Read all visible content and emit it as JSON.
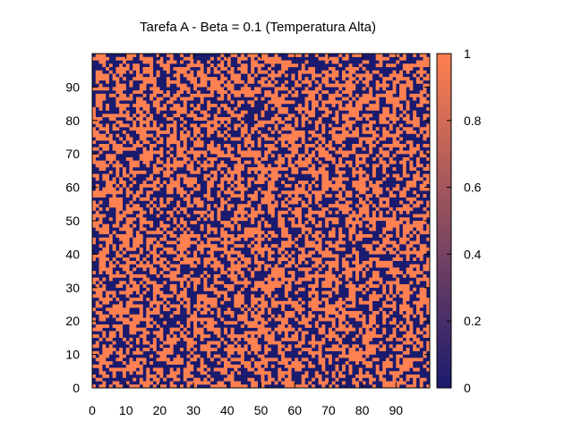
{
  "chart_data": {
    "type": "heatmap",
    "title": "Tarefa A - Beta = 0.1 (Temperatura Alta)",
    "xlabel": "",
    "ylabel": "",
    "grid_size": [
      100,
      100
    ],
    "xlim": [
      0,
      99
    ],
    "ylim": [
      0,
      99
    ],
    "x_ticks": [
      0,
      10,
      20,
      30,
      40,
      50,
      60,
      70,
      80,
      90
    ],
    "y_ticks": [
      0,
      10,
      20,
      30,
      40,
      50,
      60,
      70,
      80,
      90
    ],
    "colorbar": {
      "range": [
        0,
        1
      ],
      "ticks": [
        "0",
        "0.2",
        "0.4",
        "0.6",
        "0.8",
        "1"
      ],
      "color_low": "#1a1a6e",
      "color_high": "#ff8050"
    },
    "values_description_note": "",
    "fraction_high": 0.5,
    "seed": 17
  }
}
